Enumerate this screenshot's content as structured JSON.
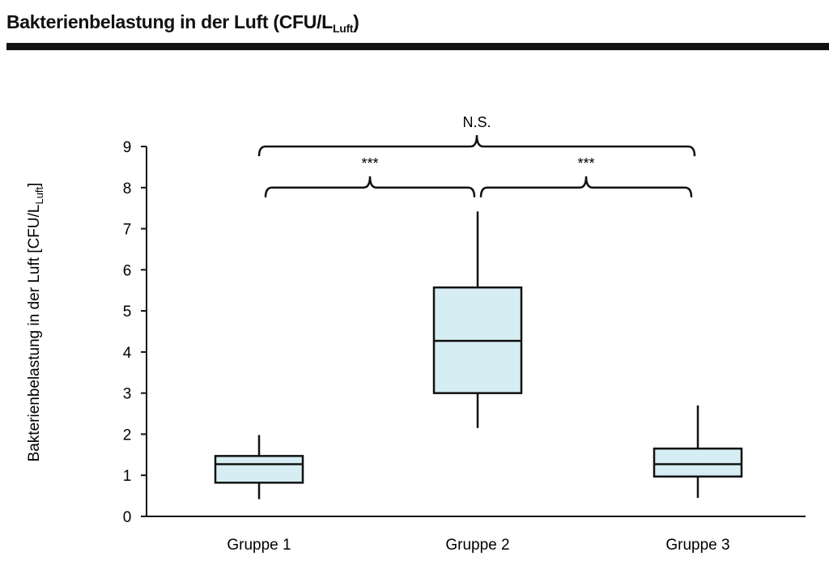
{
  "header": {
    "title_main": "Bakterienbelastung in der Luft (CFU/L",
    "title_sub": "Luft",
    "title_end": ")"
  },
  "chart_data": {
    "type": "box",
    "title": "",
    "ylabel_main": "Bakterienbelastung in der Luft [CFU/L",
    "ylabel_sub": "Luft",
    "ylabel_end": "]",
    "xlabel": "",
    "ylim": [
      0,
      9
    ],
    "yticks": [
      "0",
      "1",
      "2",
      "3",
      "4",
      "5",
      "6",
      "7",
      "8",
      "9"
    ],
    "grid": false,
    "categories": [
      "Gruppe 1",
      "Gruppe 2",
      "Gruppe 3"
    ],
    "box_color": "#d6eef3",
    "line_color": "#111111",
    "boxes": [
      {
        "category": "Gruppe 1",
        "whisker_low": 0.42,
        "q1": 0.82,
        "median": 1.27,
        "q3": 1.47,
        "whisker_high": 1.98
      },
      {
        "category": "Gruppe 2",
        "whisker_low": 2.15,
        "q1": 3.0,
        "median": 4.27,
        "q3": 5.57,
        "whisker_high": 7.42
      },
      {
        "category": "Gruppe 3",
        "whisker_low": 0.45,
        "q1": 0.97,
        "median": 1.27,
        "q3": 1.65,
        "whisker_high": 2.7
      }
    ],
    "comparisons": [
      {
        "from": "Gruppe 1",
        "to": "Gruppe 2",
        "label": "***",
        "y": 8.0
      },
      {
        "from": "Gruppe 2",
        "to": "Gruppe 3",
        "label": "***",
        "y": 8.0
      },
      {
        "from": "Gruppe 1",
        "to": "Gruppe 3",
        "label": "N.S.",
        "y": 9.0
      }
    ]
  }
}
